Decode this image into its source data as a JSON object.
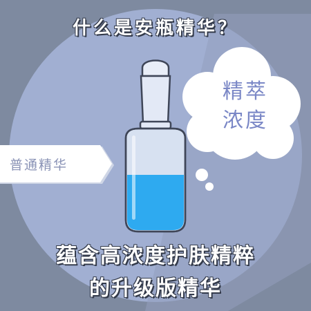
{
  "title": "什么是安瓶精华？",
  "bubble": {
    "line1": "精萃",
    "line2": "浓度"
  },
  "tag": "普通精华",
  "bottom": {
    "line1": "蕴含高浓度护肤精粹",
    "line2": "的升级版精华"
  },
  "colors": {
    "background": "#7e8aa0",
    "circle": "#a1afd2",
    "stripe": "#939fbd",
    "liquid": "#2eaaf0",
    "bottle_glass": "#d7e1f1",
    "bubble_text": "#7a87c6"
  },
  "icons": [
    "ampoule-bottle-icon",
    "thought-bubble-icon",
    "arrow-tag-icon"
  ],
  "liquid_level_fraction": 0.45
}
